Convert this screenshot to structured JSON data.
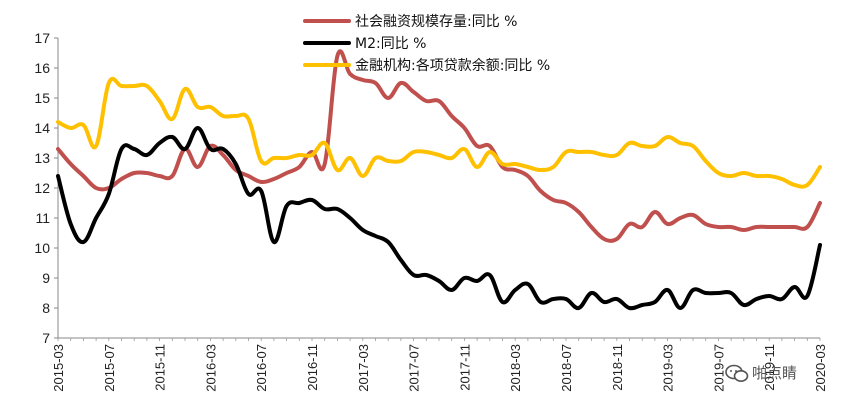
{
  "chart_data": {
    "type": "line",
    "x": [
      "2015-03",
      "2015-04",
      "2015-05",
      "2015-06",
      "2015-07",
      "2015-08",
      "2015-09",
      "2015-10",
      "2015-11",
      "2015-12",
      "2016-01",
      "2016-02",
      "2016-03",
      "2016-04",
      "2016-05",
      "2016-06",
      "2016-07",
      "2016-08",
      "2016-09",
      "2016-10",
      "2016-11",
      "2016-12",
      "2017-01",
      "2017-02",
      "2017-03",
      "2017-04",
      "2017-05",
      "2017-06",
      "2017-07",
      "2017-08",
      "2017-09",
      "2017-10",
      "2017-11",
      "2017-12",
      "2018-01",
      "2018-02",
      "2018-03",
      "2018-04",
      "2018-05",
      "2018-06",
      "2018-07",
      "2018-08",
      "2018-09",
      "2018-10",
      "2018-11",
      "2018-12",
      "2019-01",
      "2019-02",
      "2019-03",
      "2019-04",
      "2019-05",
      "2019-06",
      "2019-07",
      "2019-08",
      "2019-09",
      "2019-10",
      "2019-11",
      "2019-12",
      "2020-01",
      "2020-02",
      "2020-03"
    ],
    "x_tick_labels": [
      "2015-03",
      "2015-07",
      "2015-11",
      "2016-03",
      "2016-07",
      "2016-11",
      "2017-03",
      "2017-07",
      "2017-11",
      "2018-03",
      "2018-07",
      "2018-11",
      "2019-03",
      "2019-07",
      "2019-11",
      "2020-03"
    ],
    "ylim": [
      7,
      17
    ],
    "y_ticks": [
      7,
      8,
      9,
      10,
      11,
      12,
      13,
      14,
      15,
      16,
      17
    ],
    "legend_position": "top-center",
    "grid": false,
    "series": [
      {
        "name": "社会融资规模存量:同比 %",
        "color": "#c0504d",
        "values": [
          13.3,
          12.8,
          12.4,
          12.0,
          12.0,
          12.3,
          12.5,
          12.5,
          12.4,
          12.4,
          13.3,
          12.7,
          13.4,
          13.1,
          12.6,
          12.4,
          12.2,
          12.3,
          12.5,
          12.7,
          13.2,
          12.8,
          16.4,
          15.8,
          15.6,
          15.5,
          15.0,
          15.5,
          15.2,
          14.9,
          14.9,
          14.4,
          14.0,
          13.4,
          13.4,
          12.7,
          12.6,
          12.4,
          11.9,
          11.6,
          11.5,
          11.2,
          10.7,
          10.3,
          10.3,
          10.8,
          10.7,
          11.2,
          10.8,
          11.0,
          11.1,
          10.8,
          10.7,
          10.7,
          10.6,
          10.7,
          10.7,
          10.7,
          10.7,
          10.7,
          11.5
        ]
      },
      {
        "name": "M2:同比 %",
        "color": "#000000",
        "values": [
          12.4,
          10.8,
          10.2,
          11.0,
          11.8,
          13.3,
          13.3,
          13.1,
          13.5,
          13.7,
          13.3,
          14.0,
          13.3,
          13.3,
          12.8,
          11.8,
          11.9,
          10.2,
          11.4,
          11.5,
          11.6,
          11.3,
          11.3,
          11.0,
          10.6,
          10.4,
          10.2,
          9.6,
          9.1,
          9.1,
          8.9,
          8.6,
          9.0,
          8.9,
          9.1,
          8.2,
          8.6,
          8.8,
          8.2,
          8.3,
          8.3,
          8.0,
          8.5,
          8.2,
          8.3,
          8.0,
          8.1,
          8.2,
          8.6,
          8.0,
          8.6,
          8.5,
          8.5,
          8.5,
          8.1,
          8.3,
          8.4,
          8.3,
          8.7,
          8.4,
          10.1
        ]
      },
      {
        "name": "金融机构:各项贷款余额:同比 %",
        "color": "#ffc000",
        "values": [
          14.2,
          14.0,
          14.1,
          13.4,
          15.5,
          15.4,
          15.4,
          15.4,
          14.9,
          14.3,
          15.3,
          14.7,
          14.7,
          14.4,
          14.4,
          14.3,
          12.9,
          13.0,
          13.0,
          13.1,
          13.1,
          13.5,
          12.6,
          13.0,
          12.4,
          13.0,
          12.9,
          12.9,
          13.2,
          13.2,
          13.1,
          13.0,
          13.3,
          12.7,
          13.2,
          12.8,
          12.8,
          12.7,
          12.6,
          12.7,
          13.2,
          13.2,
          13.2,
          13.1,
          13.1,
          13.5,
          13.4,
          13.4,
          13.7,
          13.5,
          13.4,
          12.9,
          12.5,
          12.4,
          12.5,
          12.4,
          12.4,
          12.3,
          12.1,
          12.1,
          12.7
        ]
      }
    ]
  },
  "watermark": {
    "text": "啪点睛",
    "icon": "wechat-icon"
  }
}
